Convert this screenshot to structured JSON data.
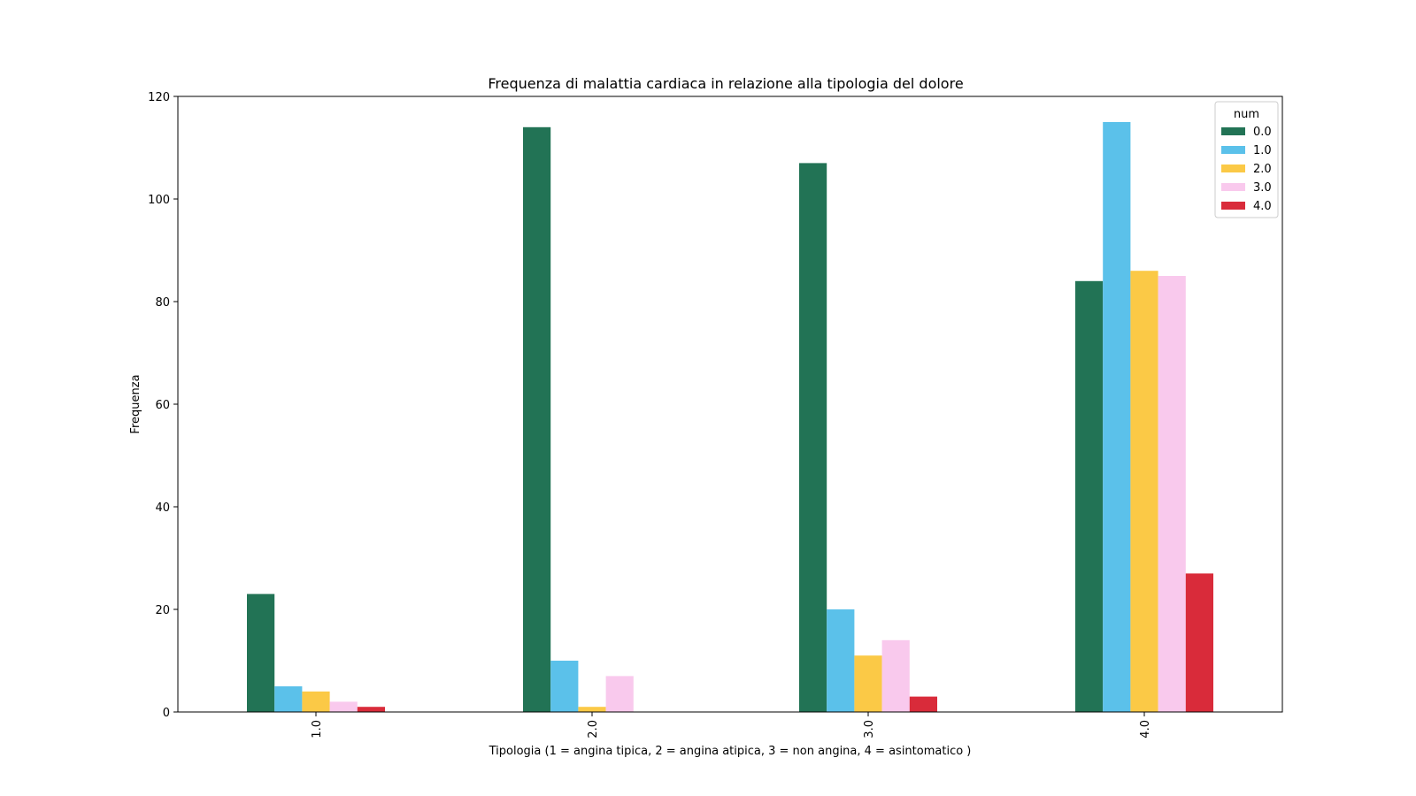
{
  "chart_data": {
    "type": "bar",
    "title": "Frequenza di malattia cardiaca in relazione alla tipologia del dolore",
    "xlabel": "Tipologia (1 = angina tipica, 2 = angina atipica, 3 = non angina, 4 = asintomatico  )",
    "ylabel": "Frequenza",
    "categories": [
      "1.0",
      "2.0",
      "3.0",
      "4.0"
    ],
    "ylim": [
      0,
      120
    ],
    "yticks": [
      0,
      20,
      40,
      60,
      80,
      100,
      120
    ],
    "legend_title": "num",
    "legend_position": "top-right",
    "grid": false,
    "series": [
      {
        "name": "0.0",
        "color": "#227355",
        "values": [
          23,
          114,
          107,
          84
        ]
      },
      {
        "name": "1.0",
        "color": "#5bc1ea",
        "values": [
          5,
          10,
          20,
          115
        ]
      },
      {
        "name": "2.0",
        "color": "#fbc946",
        "values": [
          4,
          1,
          11,
          86
        ]
      },
      {
        "name": "3.0",
        "color": "#f9c9ed",
        "values": [
          2,
          7,
          14,
          85
        ]
      },
      {
        "name": "4.0",
        "color": "#d92b3a",
        "values": [
          1,
          0,
          3,
          27
        ]
      }
    ]
  }
}
